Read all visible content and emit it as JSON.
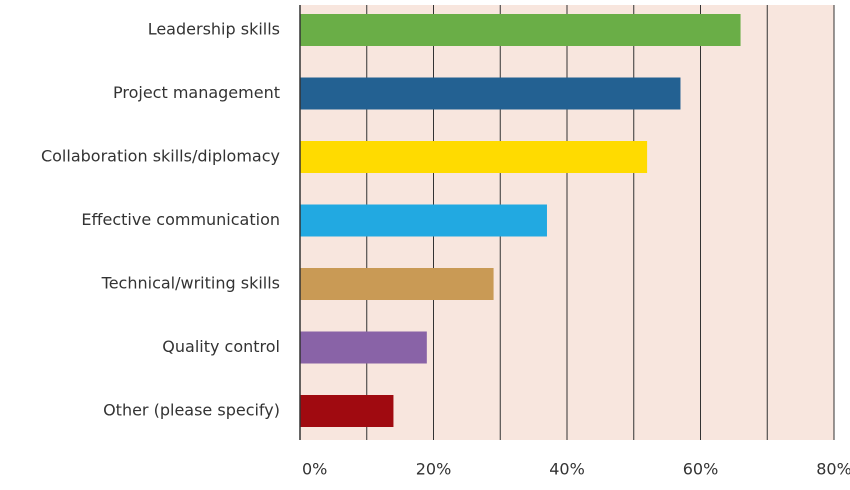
{
  "chart_data": {
    "type": "barh",
    "categories": [
      "Leadership skills",
      "Project management",
      "Collaboration skills/diplomacy",
      "Effective communication",
      "Technical/writing skills",
      "Quality control",
      "Other (please specify)"
    ],
    "values": [
      66,
      57,
      52,
      37,
      29,
      19,
      14
    ],
    "colors": [
      "#6aae47",
      "#236192",
      "#ffdb00",
      "#22a9e1",
      "#c99a55",
      "#8963a7",
      "#a00a10"
    ],
    "xlim": [
      0,
      80
    ],
    "xticks": [
      {
        "value": 0,
        "label": "0%"
      },
      {
        "value": 20,
        "label": "20%"
      },
      {
        "value": 40,
        "label": "40%"
      },
      {
        "value": 60,
        "label": "60%"
      },
      {
        "value": 80,
        "label": "80%"
      }
    ],
    "xminorticks": [
      10,
      30,
      50,
      70
    ],
    "grid": true,
    "background": "#f8e6de"
  }
}
